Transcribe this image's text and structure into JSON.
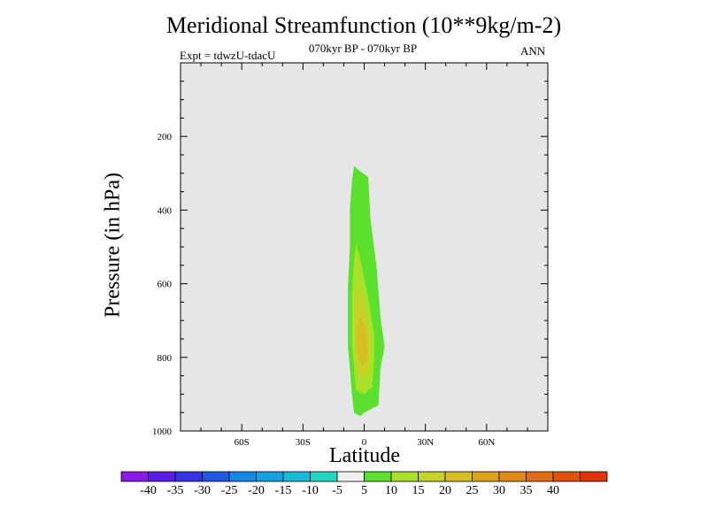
{
  "chart_data": {
    "type": "contour",
    "title": "Meridional Streamfunction (10**9kg/m-2)",
    "subtitle": "070kyr BP - 070kyr BP",
    "experiment": "Expt = tdwzU-tdacU",
    "season": "ANN",
    "xlabel": "Latitude",
    "ylabel": "Pressure (in hPa)",
    "xlim": [
      -90,
      90
    ],
    "ylim": [
      0,
      1000
    ],
    "y_inverted": true,
    "x_ticks": [
      {
        "value": -60,
        "label": "60S"
      },
      {
        "value": -30,
        "label": "30S"
      },
      {
        "value": 0,
        "label": "0"
      },
      {
        "value": 30,
        "label": "30N"
      },
      {
        "value": 60,
        "label": "60N"
      }
    ],
    "y_ticks": [
      {
        "value": 200,
        "label": "200"
      },
      {
        "value": 400,
        "label": "400"
      },
      {
        "value": 600,
        "label": "600"
      },
      {
        "value": 800,
        "label": "800"
      },
      {
        "value": 1000,
        "label": "1000"
      }
    ],
    "background_color": "#e6e6e6",
    "contours": [
      {
        "level": "5 to 10",
        "color": "#5ce02e",
        "points": [
          [
            -5,
            280
          ],
          [
            -3,
            290
          ],
          [
            2,
            310
          ],
          [
            3,
            420
          ],
          [
            6,
            550
          ],
          [
            8,
            690
          ],
          [
            10,
            770
          ],
          [
            8,
            830
          ],
          [
            7,
            930
          ],
          [
            0,
            950
          ],
          [
            -2,
            960
          ],
          [
            -5,
            950
          ],
          [
            -6,
            900
          ],
          [
            -7,
            830
          ],
          [
            -8,
            770
          ],
          [
            -8,
            610
          ],
          [
            -7,
            500
          ],
          [
            -7,
            400
          ],
          [
            -6,
            320
          ]
        ]
      },
      {
        "level": "10 to 15",
        "color": "#a8e02a",
        "points": [
          [
            -4,
            490
          ],
          [
            -2,
            530
          ],
          [
            2,
            640
          ],
          [
            5,
            740
          ],
          [
            5,
            800
          ],
          [
            4,
            880
          ],
          [
            0,
            900
          ],
          [
            -4,
            890
          ],
          [
            -5,
            830
          ],
          [
            -6,
            760
          ],
          [
            -6,
            620
          ],
          [
            -5,
            540
          ]
        ]
      },
      {
        "level": "15 to 20",
        "color": "#c8d226",
        "points": [
          [
            -3,
            600
          ],
          [
            0,
            650
          ],
          [
            2,
            720
          ],
          [
            3,
            790
          ],
          [
            2,
            840
          ],
          [
            0,
            855
          ],
          [
            -3,
            840
          ],
          [
            -4,
            780
          ],
          [
            -5,
            700
          ],
          [
            -4,
            630
          ]
        ]
      },
      {
        "level": "20 to 25",
        "color": "#d6be20",
        "points": [
          [
            -2,
            690
          ],
          [
            0,
            710
          ],
          [
            2,
            770
          ],
          [
            1,
            810
          ],
          [
            -1,
            825
          ],
          [
            -3,
            800
          ],
          [
            -4,
            740
          ],
          [
            -3,
            705
          ]
        ]
      }
    ],
    "colorbar": {
      "colors": [
        "#8a18e8",
        "#5a1ee8",
        "#3434e6",
        "#1e5ae6",
        "#1486e6",
        "#12a2e2",
        "#14bcd8",
        "#1ed8c2",
        "#f0f0f0",
        "#5ce02e",
        "#a8e02a",
        "#c8d226",
        "#d6be20",
        "#dea218",
        "#e08a14",
        "#e06e10",
        "#e0520c",
        "#e03208"
      ],
      "labels": [
        "-40",
        "-35",
        "-30",
        "-25",
        "-20",
        "-15",
        "-10",
        "-5",
        "5",
        "10",
        "15",
        "20",
        "25",
        "30",
        "35",
        "40"
      ]
    }
  }
}
